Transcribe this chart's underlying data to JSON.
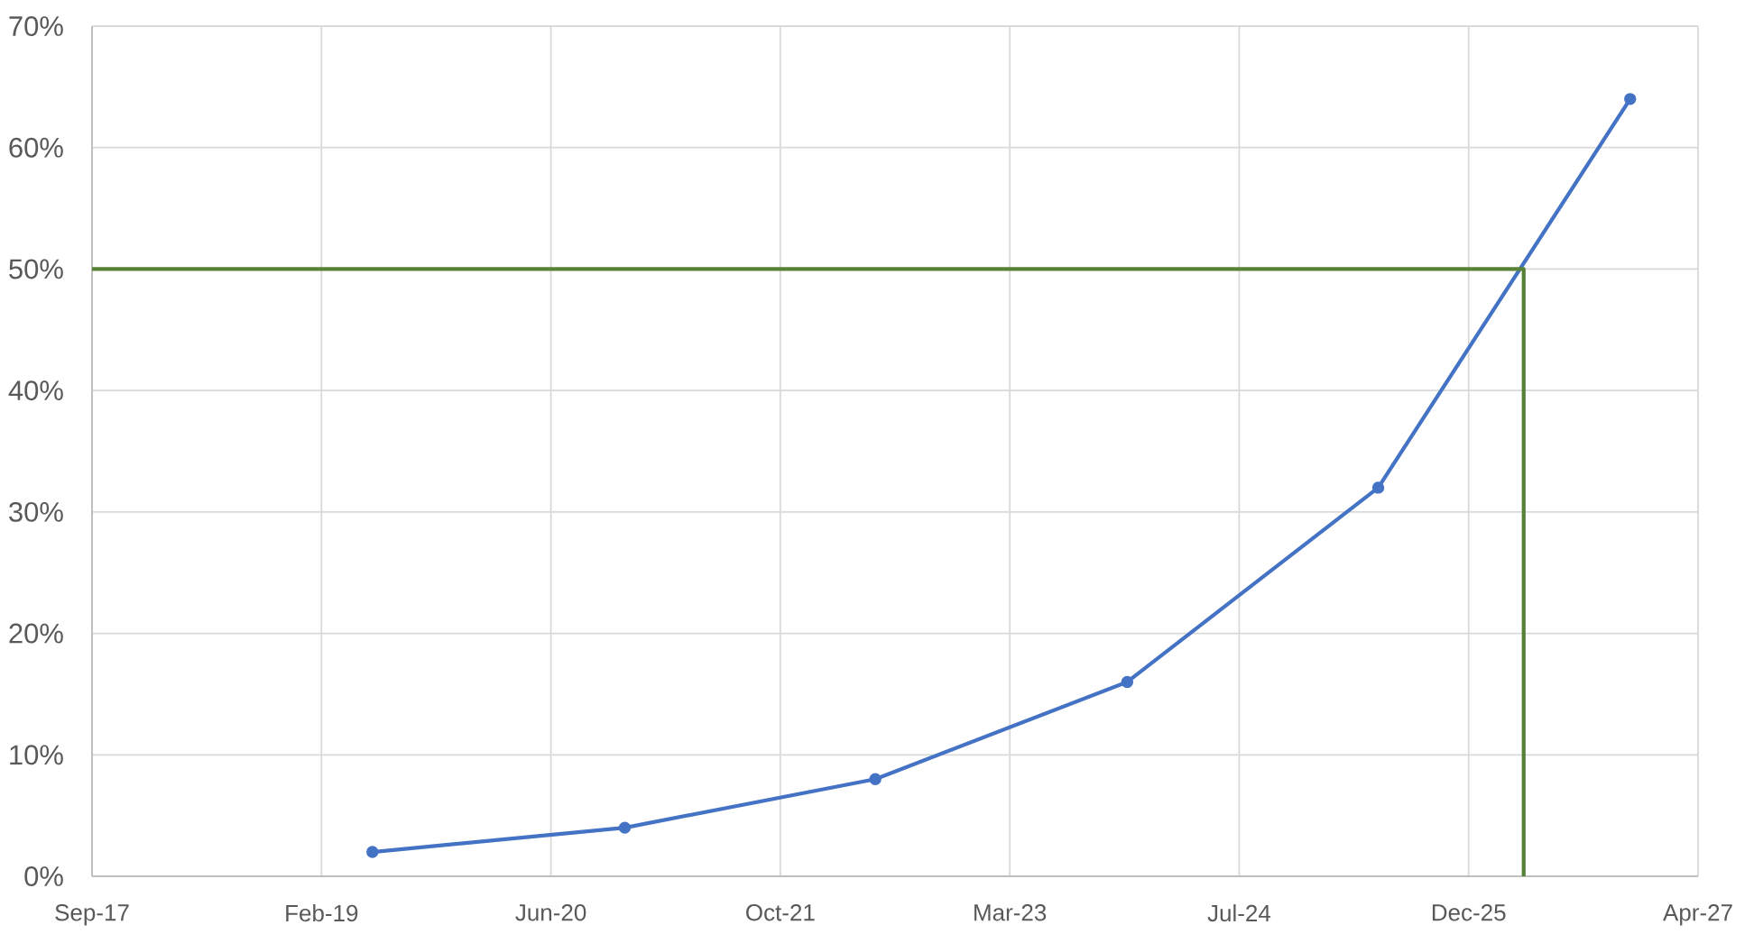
{
  "chart_data": {
    "type": "line",
    "x": [
      "2019-05-24",
      "2020-11-24",
      "2022-05-24",
      "2023-11-24",
      "2025-05-24",
      "2026-11-24"
    ],
    "series": [
      {
        "color": "#4472c4",
        "values": [
          2,
          4,
          8,
          16,
          32,
          64
        ],
        "marker": "circle"
      },
      {
        "color": "#568136",
        "type": "line",
        "x": [
          "2017-09-20",
          "2026-04-06",
          "2026-04-06"
        ],
        "values": [
          50,
          50,
          0
        ],
        "marker": "none"
      }
    ],
    "xlim": [
      "2017-09-20",
      "2027-04-21"
    ],
    "xticks": [
      {
        "value": "2017-09-20",
        "label": "Sep-17"
      },
      {
        "value": "2019-02-02",
        "label": "Feb-19"
      },
      {
        "value": "2020-06-16",
        "label": "Jun-20"
      },
      {
        "value": "2021-10-29",
        "label": "Oct-21"
      },
      {
        "value": "2023-03-13",
        "label": "Mar-23"
      },
      {
        "value": "2024-07-25",
        "label": "Jul-24"
      },
      {
        "value": "2025-12-07",
        "label": "Dec-25"
      },
      {
        "value": "2027-04-21",
        "label": "Apr-27"
      }
    ],
    "ylim": [
      0,
      70
    ],
    "yticks": [
      {
        "value": 0,
        "label": "0%"
      },
      {
        "value": 10,
        "label": "10%"
      },
      {
        "value": 20,
        "label": "20%"
      },
      {
        "value": 30,
        "label": "30%"
      },
      {
        "value": 40,
        "label": "40%"
      },
      {
        "value": 50,
        "label": "50%"
      },
      {
        "value": 60,
        "label": "60%"
      },
      {
        "value": 70,
        "label": "70%"
      }
    ],
    "grid": true
  }
}
